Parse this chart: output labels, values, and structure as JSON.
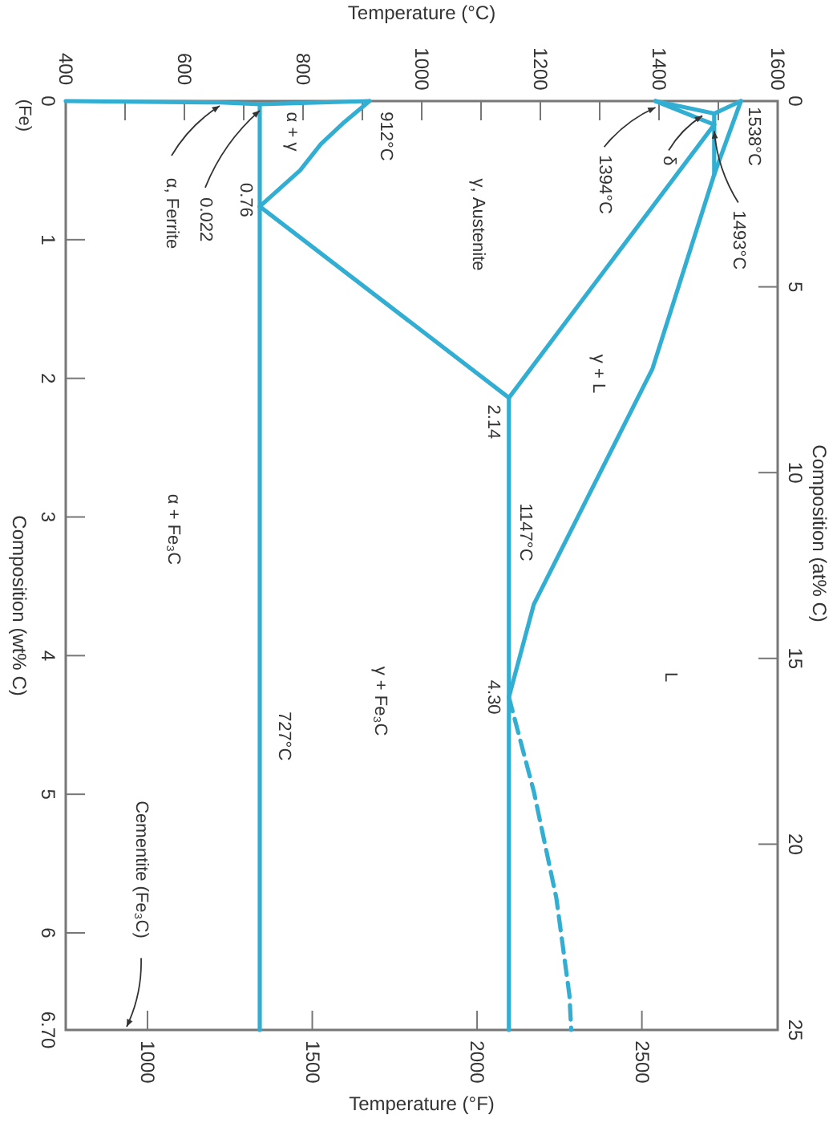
{
  "chart_data": {
    "type": "line",
    "xlabel": "Temperature (°C)",
    "x2label": "Temperature (°F)",
    "ylabel": "Composition (wt% C)",
    "y2label": "Composition (at% C)",
    "xlim": [
      400,
      1600
    ],
    "xticks": [
      400,
      {
        "value": 500,
        "label": null
      },
      600,
      {
        "value": 700,
        "label": null
      },
      800,
      {
        "value": 900,
        "label": null
      },
      1000,
      {
        "value": 1100,
        "label": null
      },
      1200,
      {
        "value": 1300,
        "label": null
      },
      1400,
      {
        "value": 1500,
        "label": null
      },
      1600
    ],
    "x2lim": [
      752,
      2912
    ],
    "x2ticks": [
      1000,
      1500,
      2000,
      2500
    ],
    "ylim": [
      6.7,
      0
    ],
    "yticks": [
      0,
      1,
      2,
      3,
      4,
      5,
      6,
      {
        "value": 6.7,
        "label": "6.70"
      }
    ],
    "y2lim": [
      25,
      0
    ],
    "y2ticks": [
      0,
      5,
      10,
      15,
      20,
      25
    ],
    "series": [
      {
        "color": "#33aed3",
        "x": [
          400,
          660,
          727,
          912
        ],
        "values": [
          0,
          0.01,
          0.022,
          0
        ]
      },
      {
        "color": "#33aed3",
        "x": [
          912,
          870,
          830,
          795,
          727
        ],
        "values": [
          0,
          0.15,
          0.31,
          0.5,
          0.76
        ]
      },
      {
        "color": "#33aed3",
        "x": [
          727,
          727
        ],
        "values": [
          0.022,
          6.7
        ]
      },
      {
        "color": "#33aed3",
        "x": [
          727,
          1147
        ],
        "values": [
          0.76,
          2.14
        ]
      },
      {
        "color": "#33aed3",
        "x": [
          1147,
          1147
        ],
        "values": [
          2.14,
          6.7
        ]
      },
      {
        "color": "#33aed3",
        "x": [
          1147,
          1493
        ],
        "values": [
          2.14,
          0.17
        ]
      },
      {
        "color": "#33aed3",
        "x": [
          1538,
          1493,
          1389,
          1189,
          1147
        ],
        "values": [
          0,
          0.53,
          1.93,
          3.63,
          4.3
        ]
      },
      {
        "color": "#33aed3",
        "x": [
          1493,
          1493
        ],
        "values": [
          0.09,
          0.53
        ]
      },
      {
        "color": "#33aed3",
        "x": [
          1394,
          1493
        ],
        "values": [
          0,
          0.09
        ]
      },
      {
        "color": "#33aed3",
        "x": [
          1394,
          1493
        ],
        "values": [
          0,
          0.17
        ]
      },
      {
        "color": "#33aed3",
        "x": [
          1538,
          1493
        ],
        "values": [
          0,
          0.09
        ]
      },
      {
        "color": "#33aed3",
        "x": [
          1147,
          1189,
          1227,
          1249,
          1252
        ],
        "values": [
          4.3,
          4.98,
          5.75,
          6.45,
          6.7
        ],
        "line_style": "dashed"
      }
    ],
    "annotations": [
      {
        "text": "1538°C",
        "x": 1538,
        "y": 0
      },
      {
        "text": "1493°C",
        "x": 1493,
        "y": 0.17
      },
      {
        "text": "δ",
        "x": 1473,
        "y": 0.06
      },
      {
        "text": "1394°C",
        "x": 1394,
        "y": 0
      },
      {
        "text": "912°C",
        "x": 912,
        "y": 0
      },
      "α + γ",
      "γ, Austenite",
      "γ + L",
      "L",
      {
        "text": "0.76",
        "x": 727,
        "y": 0.76
      },
      {
        "text": "0.022",
        "x": 727,
        "y": 0.022
      },
      "α, Ferrite",
      {
        "text": "2.14",
        "x": 1147,
        "y": 2.14
      },
      {
        "text": "1147°C",
        "x": 1147,
        "y": 3.11
      },
      {
        "text": "4.30",
        "x": 1147,
        "y": 4.3
      },
      {
        "text": "727°C",
        "x": 727,
        "y": 4.58
      },
      "γ + Fe₃C",
      "α + Fe₃C",
      "Cementite (Fe₃C)",
      "(Fe)"
    ]
  }
}
